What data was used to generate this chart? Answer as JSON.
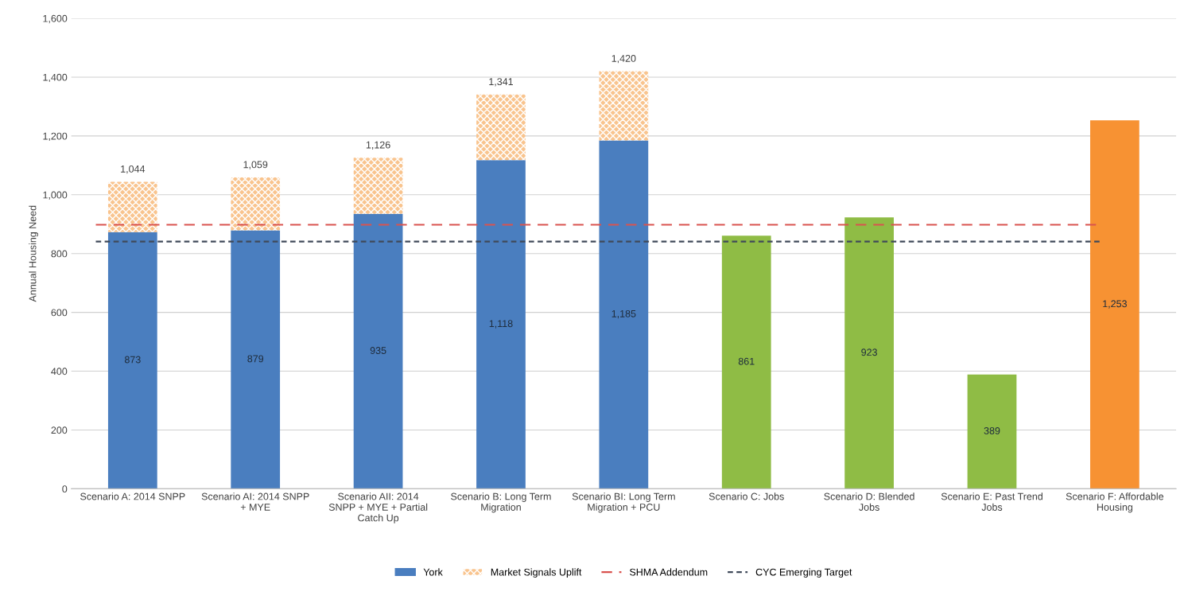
{
  "chart_data": {
    "type": "bar",
    "stacked": true,
    "ylabel": "Annual Housing Need",
    "categories": [
      "Scenario A: 2014 SNPP",
      "Scenario AI: 2014 SNPP + MYE",
      "Scenario AII: 2014 SNPP + MYE + Partial Catch Up",
      "Scenario B: Long Term Migration",
      "Scenario BI: Long Term Migration + PCU",
      "Scenario C: Jobs",
      "Scenario D: Blended Jobs",
      "Scenario E: Past Trend Jobs",
      "Scenario F: Affordable Housing"
    ],
    "series": [
      {
        "name": "York",
        "color": "#4a7ebf",
        "colors": [
          "#4a7ebf",
          "#4a7ebf",
          "#4a7ebf",
          "#4a7ebf",
          "#4a7ebf",
          "#8fbc45",
          "#8fbc45",
          "#8fbc45",
          "#f79233"
        ],
        "values": [
          873,
          879,
          935,
          1118,
          1185,
          861,
          923,
          389,
          1253
        ],
        "value_labels": [
          "873",
          "879",
          "935",
          "1,118",
          "1,185",
          "861",
          "923",
          "389",
          "1,253"
        ]
      },
      {
        "name": "Market Signals Uplift",
        "color": "#f9c48e",
        "values": [
          171,
          180,
          191,
          223,
          235,
          null,
          null,
          null,
          null
        ]
      }
    ],
    "totals": [
      "1,044",
      "1,059",
      "1,126",
      "1,341",
      "1,420",
      null,
      null,
      null,
      null
    ],
    "ref_lines": [
      {
        "axis": "y",
        "value": 898,
        "label": "SHMA Addendum",
        "color": "#d9534f",
        "line_style": "dashed"
      },
      {
        "axis": "y",
        "value": 841,
        "label": "CYC Emerging Target",
        "color": "#404a5a",
        "line_style": "dotted"
      }
    ],
    "ylim": [
      0,
      1600
    ],
    "yticks": [
      0,
      200,
      400,
      600,
      800,
      {
        "value": 1000,
        "label": "1,000"
      },
      {
        "value": 1200,
        "label": "1,200"
      },
      {
        "value": 1400,
        "label": "1,400"
      },
      {
        "value": 1600,
        "label": "1,600"
      }
    ],
    "grid": "y",
    "legend": "bottom"
  }
}
